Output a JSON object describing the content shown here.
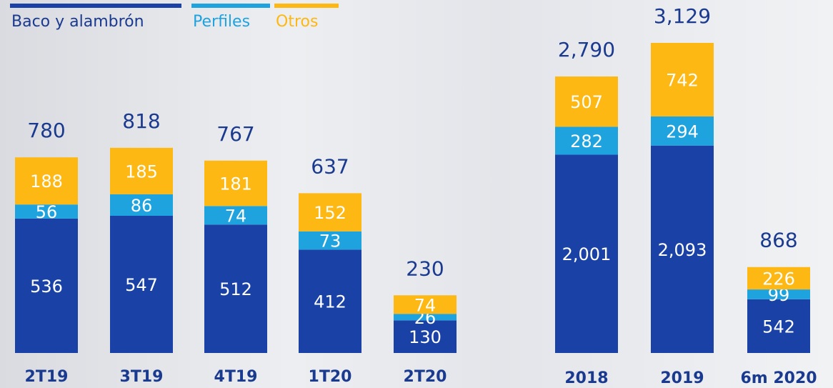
{
  "chart_data": [
    {
      "type": "bar",
      "stacked": true,
      "categories": [
        "2T19",
        "3T19",
        "4T19",
        "1T20",
        "2T20"
      ],
      "series": [
        {
          "name": "Baco y alambrón",
          "color": "#1a42a6",
          "values": [
            536,
            547,
            512,
            412,
            130
          ]
        },
        {
          "name": "Perfiles",
          "color": "#1fa3df",
          "values": [
            56,
            86,
            74,
            73,
            26
          ]
        },
        {
          "name": "Otros",
          "color": "#fdb813",
          "values": [
            188,
            185,
            181,
            152,
            74
          ]
        }
      ],
      "totals": [
        780,
        818,
        767,
        637,
        230
      ]
    },
    {
      "type": "bar",
      "stacked": true,
      "categories": [
        "2018",
        "2019",
        "6m 2020"
      ],
      "series": [
        {
          "color": "#1a42a6",
          "values": [
            2001,
            2093,
            542
          ],
          "value_labels": [
            "2,001",
            "2,093",
            "542"
          ]
        },
        {
          "color": "#1fa3df",
          "values": [
            282,
            294,
            99
          ]
        },
        {
          "color": "#fdb813",
          "values": [
            507,
            742,
            226
          ]
        }
      ],
      "totals": [
        2790,
        3129,
        868
      ],
      "total_labels": [
        "2,790",
        "3,129",
        "868"
      ]
    }
  ]
}
